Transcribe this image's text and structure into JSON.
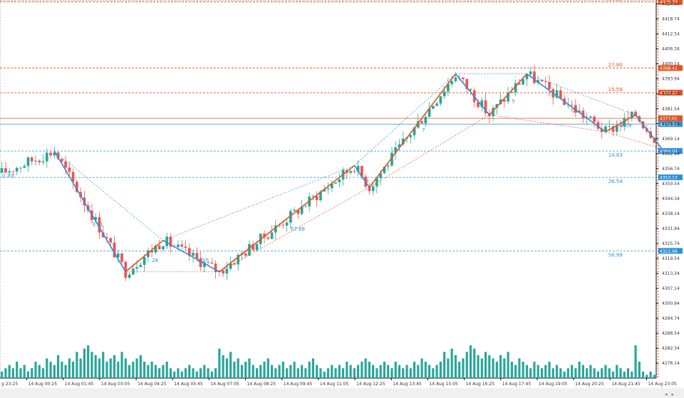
{
  "chart_data": {
    "type": "candlestick",
    "ylim": [
      4270.0,
      4426.0
    ],
    "y_ticks": [
      "4424.94",
      "4418.74",
      "4412.54",
      "4406.34",
      "4400.14",
      "4393.94",
      "4387.74",
      "4381.54",
      "4375.34",
      "4369.14",
      "4362.94",
      "4356.74",
      "4350.54",
      "4344.34",
      "4338.14",
      "4331.94",
      "4325.74",
      "4319.54",
      "4313.34",
      "4307.14",
      "4300.94",
      "4294.74",
      "4288.54",
      "4282.34",
      "4276.14"
    ],
    "x_ticks": [
      "14 Aug 00:25",
      "14 Aug 01:45",
      "14 Aug 03:05",
      "14 Aug 04:25",
      "14 Aug 05:45",
      "14 Aug 07:05",
      "14 Aug 08:25",
      "14 Aug 09:45",
      "14 Aug 11:05",
      "14 Aug 12:25",
      "14 Aug 13:45",
      "14 Aug 15:05",
      "14 Aug 16:25",
      "14 Aug 17:45",
      "14 Aug 19:05",
      "14 Aug 20:25",
      "14 Aug 21:45",
      "14 Aug 23:05"
    ],
    "x_tick_first_display": "g 23:25",
    "price_path": [
      {
        "bar": 0,
        "price": 4355
      },
      {
        "bar": 14,
        "price": 4364
      },
      {
        "bar": 33,
        "price": 4314
      },
      {
        "bar": 43,
        "price": 4327
      },
      {
        "bar": 58,
        "price": 4314
      },
      {
        "bar": 94,
        "price": 4358
      },
      {
        "bar": 98,
        "price": 4349
      },
      {
        "bar": 121,
        "price": 4396
      },
      {
        "bar": 130,
        "price": 4379
      },
      {
        "bar": 140,
        "price": 4396
      },
      {
        "bar": 161,
        "price": 4372
      },
      {
        "bar": 169,
        "price": 4379
      },
      {
        "bar": 175,
        "price": 4368
      }
    ],
    "zigzag": [
      {
        "bar": 14,
        "price": 4364,
        "color": "#e8501e"
      },
      {
        "bar": 33,
        "price": 4314,
        "color": "#2b8fd9"
      },
      {
        "bar": 43,
        "price": 4327,
        "color": "#e8501e"
      },
      {
        "bar": 58,
        "price": 4314,
        "color": "#2b8fd9"
      },
      {
        "bar": 94,
        "price": 4358,
        "color": "#e8501e"
      },
      {
        "bar": 98,
        "price": 4349,
        "color": "#2b8fd9"
      },
      {
        "bar": 121,
        "price": 4396,
        "color": "#e8501e"
      },
      {
        "bar": 130,
        "price": 4379,
        "color": "#2b8fd9"
      },
      {
        "bar": 140,
        "price": 4396,
        "color": "#e8501e"
      },
      {
        "bar": 161,
        "price": 4372,
        "color": "#2b8fd9"
      },
      {
        "bar": 169,
        "price": 4379,
        "color": "#e8501e"
      },
      {
        "bar": 176,
        "price": 4365,
        "color": "#2b8fd9"
      }
    ],
    "levels": [
      {
        "price": 4425.79,
        "label": "4425.79",
        "ratio": "58.15",
        "color": "#e8501e"
      },
      {
        "price": 4398.41,
        "label": "4398.41",
        "ratio": "27.80",
        "color": "#e8501e"
      },
      {
        "price": 4388.2,
        "label": "4388.20",
        "ratio": "15.59",
        "color": "#e8501e"
      },
      {
        "price": 4364.04,
        "label": "4364.04",
        "ratio": "14.83",
        "color": "#2b8fd9"
      },
      {
        "price": 4353.13,
        "label": "4353.13",
        "ratio": "26.54",
        "color": "#2b8fd9"
      },
      {
        "price": 4322.68,
        "label": "4322.68",
        "ratio": "56.99",
        "color": "#2b8fd9"
      }
    ],
    "current_ask": {
      "price": 4377.61,
      "label": "4377.61",
      "color": "#e8501e"
    },
    "current_bid": {
      "price": 4375.2,
      "label": "4375.20",
      "color": "#2b8fd9"
    },
    "chart_labels": [
      {
        "bar": 0,
        "price": 4353,
        "text": "0.27",
        "color": "#2b8fd9"
      },
      {
        "bar": 24,
        "price": 4333,
        "text": "3.11",
        "color": "#2b8fd9"
      },
      {
        "bar": 40,
        "price": 4318,
        "text": "28",
        "color": "#2b8fd9"
      },
      {
        "bar": 52,
        "price": 4318,
        "text": "1.27",
        "color": "#2b8fd9"
      },
      {
        "bar": 77,
        "price": 4331,
        "text": "57.68",
        "color": "#2b8fd9"
      },
      {
        "bar": 97,
        "price": 4351,
        "text": "3",
        "color": "#e8501e"
      },
      {
        "bar": 112,
        "price": 4372,
        "text": "7",
        "color": "#2b8fd9"
      },
      {
        "bar": 136,
        "price": 4384,
        "text": "5",
        "color": "#2b8fd9"
      },
      {
        "bar": 152,
        "price": 4380,
        "text": "15",
        "color": "#e8501e"
      },
      {
        "bar": 165,
        "price": 4374,
        "text": "8.08",
        "color": "#2b8fd9"
      }
    ],
    "volume_relative": [
      0.2,
      0.3,
      0.4,
      0.3,
      0.5,
      0.3,
      0.4,
      0.2,
      0.3,
      0.5,
      0.4,
      0.3,
      0.6,
      0.5,
      0.4,
      0.7,
      0.5,
      0.4,
      0.6,
      0.5,
      0.8,
      0.6,
      0.9,
      1.0,
      0.8,
      0.7,
      0.6,
      0.8,
      0.5,
      0.6,
      0.7,
      0.5,
      0.8,
      0.6,
      0.4,
      0.5,
      0.6,
      0.7,
      0.5,
      0.4,
      0.5,
      0.4,
      0.3,
      0.4,
      0.5,
      0.3,
      0.2,
      0.3,
      0.2,
      0.3,
      0.4,
      0.3,
      0.2,
      0.3,
      0.4,
      0.3,
      0.2,
      0.3,
      0.9,
      0.7,
      0.6,
      0.8,
      0.5,
      0.6,
      0.4,
      0.5,
      0.6,
      0.4,
      0.3,
      0.4,
      0.5,
      0.6,
      0.4,
      0.3,
      0.4,
      0.5,
      0.3,
      0.4,
      0.5,
      0.3,
      0.4,
      0.3,
      0.5,
      0.6,
      0.4,
      0.3,
      0.2,
      0.3,
      0.4,
      0.3,
      0.4,
      0.3,
      0.5,
      0.4,
      0.3,
      0.4,
      0.5,
      0.6,
      0.5,
      0.4,
      0.3,
      0.4,
      0.5,
      0.4,
      0.3,
      0.5,
      0.4,
      0.3,
      0.4,
      0.3,
      0.5,
      0.4,
      0.6,
      0.5,
      0.4,
      0.3,
      0.4,
      0.5,
      0.8,
      0.6,
      0.9,
      0.7,
      0.5,
      0.6,
      0.8,
      1.0,
      0.9,
      0.7,
      0.6,
      0.8,
      0.7,
      0.6,
      0.5,
      0.7,
      0.6,
      0.8,
      0.5,
      0.4,
      0.6,
      0.5,
      0.4,
      0.3,
      0.5,
      0.4,
      0.3,
      0.4,
      0.5,
      0.3,
      0.4,
      0.3,
      0.2,
      0.3,
      0.4,
      0.3,
      0.5,
      0.4,
      0.3,
      0.4,
      0.3,
      0.2,
      0.3,
      0.4,
      0.3,
      0.2,
      0.4,
      0.3,
      0.2,
      0.3,
      0.2,
      1.0,
      0.5,
      0.2,
      0.1,
      0.2,
      0.1
    ],
    "grid": false,
    "colors": {
      "bull": "#26a69a",
      "bear": "#ef5350",
      "axis": "#333333",
      "volume": "#26a69a"
    }
  },
  "ui": {
    "scroll_left": "◂",
    "scroll_right": "▸"
  }
}
